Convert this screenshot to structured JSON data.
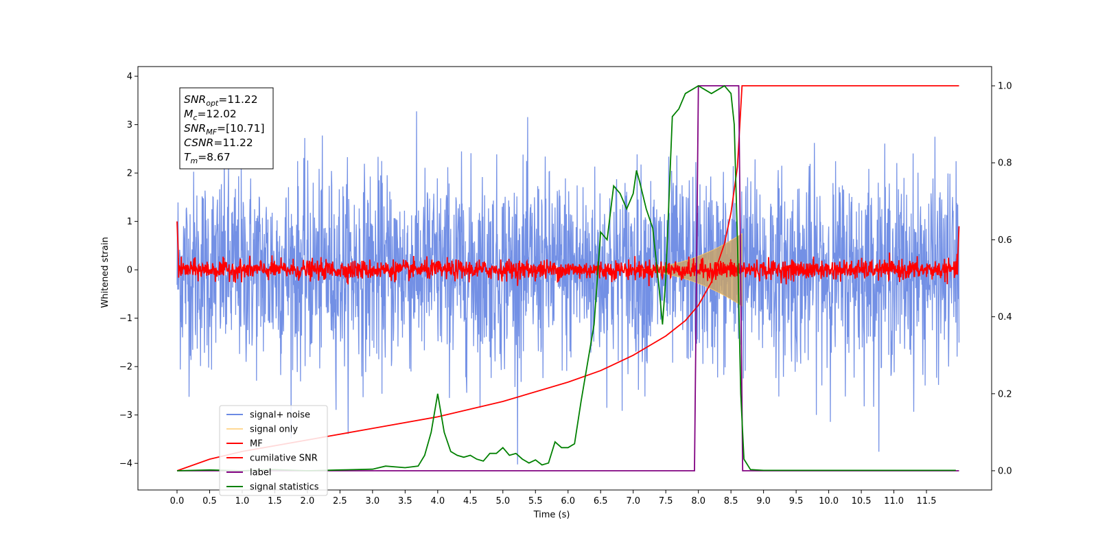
{
  "chart_data": {
    "type": "line",
    "xlabel": "Time (s)",
    "ylabel": "Whitened strain",
    "xlim": [
      -0.6,
      12.5
    ],
    "ylim": [
      -4.55,
      4.2
    ],
    "y2lim": [
      -0.05,
      1.05
    ],
    "xticks": [
      "0.0",
      "0.5",
      "1.0",
      "1.5",
      "2.0",
      "2.5",
      "3.0",
      "3.5",
      "4.0",
      "4.5",
      "5.0",
      "5.5",
      "6.0",
      "6.5",
      "7.0",
      "7.5",
      "8.0",
      "8.5",
      "9.0",
      "9.5",
      "10.0",
      "10.5",
      "11.0",
      "11.5"
    ],
    "yticks": [
      "4",
      "3",
      "2",
      "1",
      "0",
      "−1",
      "−2",
      "−3",
      "−4"
    ],
    "y2ticks": [
      "1.0",
      "0.8",
      "0.6",
      "0.4",
      "0.2",
      "0.0"
    ],
    "grid": false,
    "legend_position": "lower-left",
    "stats": [
      {
        "sym": "SNR",
        "sub": "opt",
        "value": "=11.22"
      },
      {
        "sym": "M",
        "sub": "c",
        "value": "=12.02"
      },
      {
        "sym": "SNR",
        "sub": "MF",
        "value": "=[10.71]"
      },
      {
        "sym": "CSNR",
        "sub": "",
        "value": "=11.22"
      },
      {
        "sym": "T",
        "sub": "m",
        "value": "=8.67"
      }
    ],
    "series": [
      {
        "name": "signal+ noise",
        "color": "#6c8ae4",
        "axis": "left",
        "kind": "noise",
        "t_range": [
          0,
          12
        ],
        "std": 1.0
      },
      {
        "name": "signal only",
        "color": "#ffc966",
        "axis": "left",
        "kind": "chirp",
        "t_range": [
          6.8,
          8.67
        ],
        "peak_amplitude": 0.75
      },
      {
        "name": "MF",
        "color": "#ff0000",
        "axis": "left",
        "kind": "noise",
        "t_range": [
          0,
          12
        ],
        "std": 0.1
      },
      {
        "name": "cumilative SNR",
        "color": "#ff0000",
        "axis": "right",
        "x": [
          0.0,
          0.5,
          1.0,
          2.0,
          3.0,
          4.0,
          5.0,
          6.0,
          6.5,
          7.0,
          7.5,
          7.8,
          8.0,
          8.2,
          8.4,
          8.5,
          8.6,
          8.67,
          12.0
        ],
        "values": [
          0.0,
          0.03,
          0.05,
          0.08,
          0.11,
          0.14,
          0.18,
          0.23,
          0.26,
          0.3,
          0.35,
          0.39,
          0.43,
          0.49,
          0.59,
          0.67,
          0.79,
          1.0,
          1.0
        ]
      },
      {
        "name": "label",
        "color": "#800080",
        "axis": "right",
        "x": [
          0.0,
          7.94,
          8.0,
          8.62,
          8.68,
          12.0
        ],
        "values": [
          0.0,
          0.0,
          1.0,
          1.0,
          0.0,
          0.0
        ]
      },
      {
        "name": "signal statistics",
        "color": "#008000",
        "axis": "right",
        "x": [
          0.0,
          0.5,
          1.0,
          1.5,
          2.0,
          2.5,
          3.0,
          3.2,
          3.5,
          3.7,
          3.8,
          3.9,
          4.0,
          4.1,
          4.2,
          4.3,
          4.4,
          4.5,
          4.6,
          4.7,
          4.8,
          4.9,
          5.0,
          5.1,
          5.2,
          5.3,
          5.4,
          5.5,
          5.6,
          5.7,
          5.8,
          5.9,
          6.0,
          6.1,
          6.2,
          6.3,
          6.4,
          6.5,
          6.6,
          6.7,
          6.8,
          6.9,
          7.0,
          7.05,
          7.1,
          7.2,
          7.3,
          7.4,
          7.45,
          7.5,
          7.6,
          7.7,
          7.8,
          7.9,
          8.0,
          8.1,
          8.2,
          8.3,
          8.4,
          8.5,
          8.55,
          8.6,
          8.65,
          8.7,
          8.8,
          9.0,
          10.0,
          11.0,
          11.95
        ],
        "values": [
          0.0,
          0.002,
          0.0,
          0.003,
          0.0,
          0.002,
          0.004,
          0.012,
          0.008,
          0.012,
          0.04,
          0.1,
          0.2,
          0.1,
          0.05,
          0.04,
          0.035,
          0.04,
          0.03,
          0.025,
          0.045,
          0.045,
          0.06,
          0.04,
          0.045,
          0.03,
          0.02,
          0.028,
          0.015,
          0.02,
          0.075,
          0.06,
          0.06,
          0.07,
          0.18,
          0.28,
          0.38,
          0.62,
          0.6,
          0.74,
          0.72,
          0.68,
          0.72,
          0.78,
          0.75,
          0.68,
          0.63,
          0.47,
          0.38,
          0.5,
          0.92,
          0.94,
          0.98,
          0.99,
          1.0,
          0.99,
          0.98,
          0.99,
          1.0,
          0.98,
          0.9,
          0.6,
          0.2,
          0.03,
          0.003,
          0.001,
          0.001,
          0.001,
          0.001
        ]
      }
    ]
  }
}
